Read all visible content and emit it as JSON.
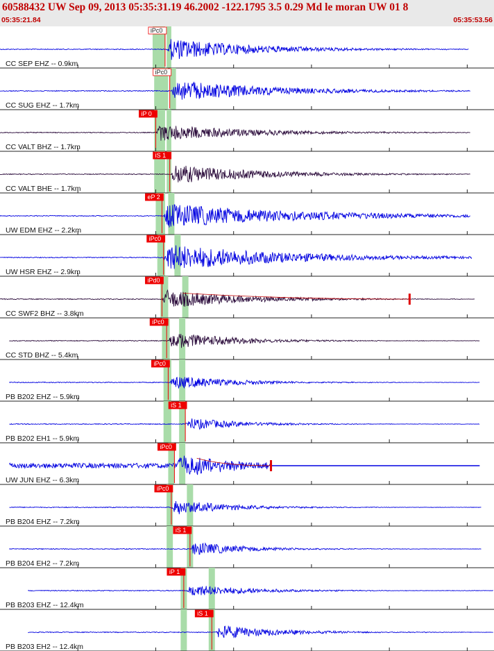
{
  "header": {
    "title": "60588432 UW Sep 09, 2013 05:35:31.19   46.2002 -122.1795  3.5 0.29 Md le moran UW 01   8",
    "time_start": "05:35:21.84",
    "time_end": "05:35:53.56"
  },
  "colors": {
    "accent": "#c00000",
    "trace_blue": "#0000e0",
    "trace_dark": "#2a0a3a",
    "window_green": "#a9dca9",
    "pick_red": "#ee0000",
    "grid": "#222222"
  },
  "chart_data": {
    "type": "seismogram",
    "x_range": [
      "05:35:21.84",
      "05:35:53.56"
    ],
    "x_duration_s": 31.72,
    "x_grid_interval_s": 5,
    "traces": [
      {
        "label": "CC SEP EHZ -- 0.9km",
        "color": "blue",
        "data_start_s": 0.0,
        "data_end_s": 30.1,
        "onset_s": 10.7,
        "amplitude": 0.55,
        "decay": 5.5,
        "pick": {
          "label": "iPc0",
          "time_s": 10.6,
          "style": "outline"
        },
        "windows": [
          {
            "start_s": 9.8,
            "end_s": 10.6
          },
          {
            "start_s": 10.7,
            "end_s": 11.0
          }
        ]
      },
      {
        "label": "CC SUG EHZ -- 1.7km",
        "color": "blue",
        "data_start_s": 0.0,
        "data_end_s": 30.2,
        "onset_s": 11.0,
        "amplitude": 0.52,
        "decay": 6.5,
        "pick": {
          "label": "iPc0",
          "time_s": 10.9,
          "style": "outline"
        },
        "windows": [
          {
            "start_s": 9.9,
            "end_s": 10.8
          },
          {
            "start_s": 10.9,
            "end_s": 11.3
          }
        ]
      },
      {
        "label": "CC VALT BHZ -- 1.7km",
        "color": "dark",
        "data_start_s": 0.0,
        "data_end_s": 30.2,
        "onset_s": 10.0,
        "amplitude": 0.42,
        "decay": 6.0,
        "pick": {
          "label": "iP 0",
          "time_s": 10.0,
          "style": "filled"
        },
        "windows": [
          {
            "start_s": 9.9,
            "end_s": 10.6
          },
          {
            "start_s": 10.7,
            "end_s": 11.0
          }
        ]
      },
      {
        "label": "CC VALT BHE -- 1.7km",
        "color": "dark",
        "data_start_s": 0.0,
        "data_end_s": 30.2,
        "onset_s": 10.9,
        "amplitude": 0.5,
        "decay": 5.5,
        "pick": {
          "label": "iS 1",
          "time_s": 10.9,
          "style": "filled"
        },
        "windows": [
          {
            "start_s": 9.9,
            "end_s": 10.6
          },
          {
            "start_s": 10.7,
            "end_s": 11.0
          }
        ]
      },
      {
        "label": "UW EDM EHZ -- 2.2km",
        "color": "blue",
        "data_start_s": 0.0,
        "data_end_s": 30.2,
        "onset_s": 10.5,
        "amplitude": 0.6,
        "decay": 9.0,
        "pick": {
          "label": "eP 2",
          "time_s": 10.4,
          "style": "filled"
        },
        "windows": [
          {
            "start_s": 10.0,
            "end_s": 10.6
          },
          {
            "start_s": 10.8,
            "end_s": 11.2
          }
        ]
      },
      {
        "label": "UW HSR EHZ -- 2.9km",
        "color": "blue",
        "data_start_s": 0.0,
        "data_end_s": 30.3,
        "onset_s": 10.5,
        "amplitude": 0.68,
        "decay": 7.5,
        "pick": {
          "label": "iPc0",
          "time_s": 10.5,
          "style": "filled"
        },
        "windows": [
          {
            "start_s": 10.1,
            "end_s": 10.6
          },
          {
            "start_s": 11.2,
            "end_s": 11.6
          }
        ]
      },
      {
        "label": "CC SWF2 BHZ -- 3.8km",
        "color": "dark",
        "data_start_s": 0.0,
        "data_end_s": 30.5,
        "onset_s": 10.4,
        "amplitude": 0.48,
        "decay": 5.0,
        "pick": {
          "label": "iPd0",
          "time_s": 10.4,
          "style": "filled"
        },
        "windows": [
          {
            "start_s": 10.3,
            "end_s": 10.8
          },
          {
            "start_s": 11.7,
            "end_s": 12.1
          }
        ],
        "coda_marker_s": 26.3
      },
      {
        "label": "CC STD BHZ -- 5.4km",
        "color": "dark",
        "data_start_s": 0.6,
        "data_end_s": 30.8,
        "onset_s": 10.8,
        "amplitude": 0.45,
        "decay": 4.0,
        "pick": {
          "label": "iPc0",
          "time_s": 10.7,
          "style": "filled"
        },
        "windows": [
          {
            "start_s": 10.4,
            "end_s": 10.9
          },
          {
            "start_s": 11.5,
            "end_s": 11.9
          }
        ]
      },
      {
        "label": "PB B202 EHZ -- 5.9km",
        "color": "blue",
        "data_start_s": 0.6,
        "data_end_s": 30.8,
        "onset_s": 10.9,
        "amplitude": 0.35,
        "decay": 4.0,
        "pick": {
          "label": "iPc0",
          "time_s": 10.8,
          "style": "filled"
        },
        "windows": [
          {
            "start_s": 10.5,
            "end_s": 11.0
          },
          {
            "start_s": 11.5,
            "end_s": 11.9
          }
        ]
      },
      {
        "label": "PB B202 EH1 -- 5.9km",
        "color": "blue",
        "data_start_s": 0.6,
        "data_end_s": 30.8,
        "onset_s": 11.9,
        "amplitude": 0.32,
        "decay": 3.5,
        "pick": {
          "label": "iS 1",
          "time_s": 11.9,
          "style": "filled"
        },
        "windows": [
          {
            "start_s": 10.5,
            "end_s": 11.0
          },
          {
            "start_s": 11.5,
            "end_s": 11.9
          }
        ]
      },
      {
        "label": "UW JUN EHZ -- 6.3km",
        "color": "blue",
        "data_start_s": 0.6,
        "data_end_s": 17.4,
        "onset_s": 11.3,
        "amplitude": 0.6,
        "decay": 4.0,
        "noise": 0.12,
        "pick": {
          "label": "iPc0",
          "time_s": 11.2,
          "style": "filled"
        },
        "windows": [
          {
            "start_s": 10.8,
            "end_s": 11.2
          },
          {
            "start_s": 11.5,
            "end_s": 11.9
          }
        ],
        "coda_marker_s": 17.4,
        "extra_segment": {
          "start_s": 17.4,
          "end_s": 30.8
        }
      },
      {
        "label": "PB B204 EHZ -- 7.2km",
        "color": "blue",
        "data_start_s": 0.6,
        "data_end_s": 30.9,
        "onset_s": 11.0,
        "amplitude": 0.4,
        "decay": 3.5,
        "pick": {
          "label": "iPc0",
          "time_s": 11.0,
          "style": "filled"
        },
        "windows": [
          {
            "start_s": 10.7,
            "end_s": 11.1
          },
          {
            "start_s": 12.0,
            "end_s": 12.4
          }
        ]
      },
      {
        "label": "PB B204 EH2 -- 7.2km",
        "color": "blue",
        "data_start_s": 0.6,
        "data_end_s": 30.9,
        "onset_s": 12.2,
        "amplitude": 0.36,
        "decay": 3.5,
        "pick": {
          "label": "iS 1",
          "time_s": 12.2,
          "style": "filled"
        },
        "windows": [
          {
            "start_s": 10.7,
            "end_s": 11.1
          },
          {
            "start_s": 12.0,
            "end_s": 12.4
          }
        ]
      },
      {
        "label": "PB B203 EHZ -- 12.4km",
        "color": "blue",
        "data_start_s": 1.8,
        "data_end_s": 31.7,
        "onset_s": 12.0,
        "amplitude": 0.32,
        "decay": 4.0,
        "pick": {
          "label": "iP 1",
          "time_s": 11.8,
          "style": "filled"
        },
        "windows": [
          {
            "start_s": 11.6,
            "end_s": 12.0
          },
          {
            "start_s": 13.4,
            "end_s": 13.8
          }
        ]
      },
      {
        "label": "PB B203 EH2 -- 12.4km",
        "color": "blue",
        "data_start_s": 1.8,
        "data_end_s": 31.7,
        "onset_s": 13.8,
        "amplitude": 0.36,
        "decay": 4.0,
        "pick": {
          "label": "iS 1",
          "time_s": 13.6,
          "style": "filled"
        },
        "windows": [
          {
            "start_s": 11.6,
            "end_s": 12.0
          },
          {
            "start_s": 13.4,
            "end_s": 13.8
          }
        ]
      }
    ]
  }
}
